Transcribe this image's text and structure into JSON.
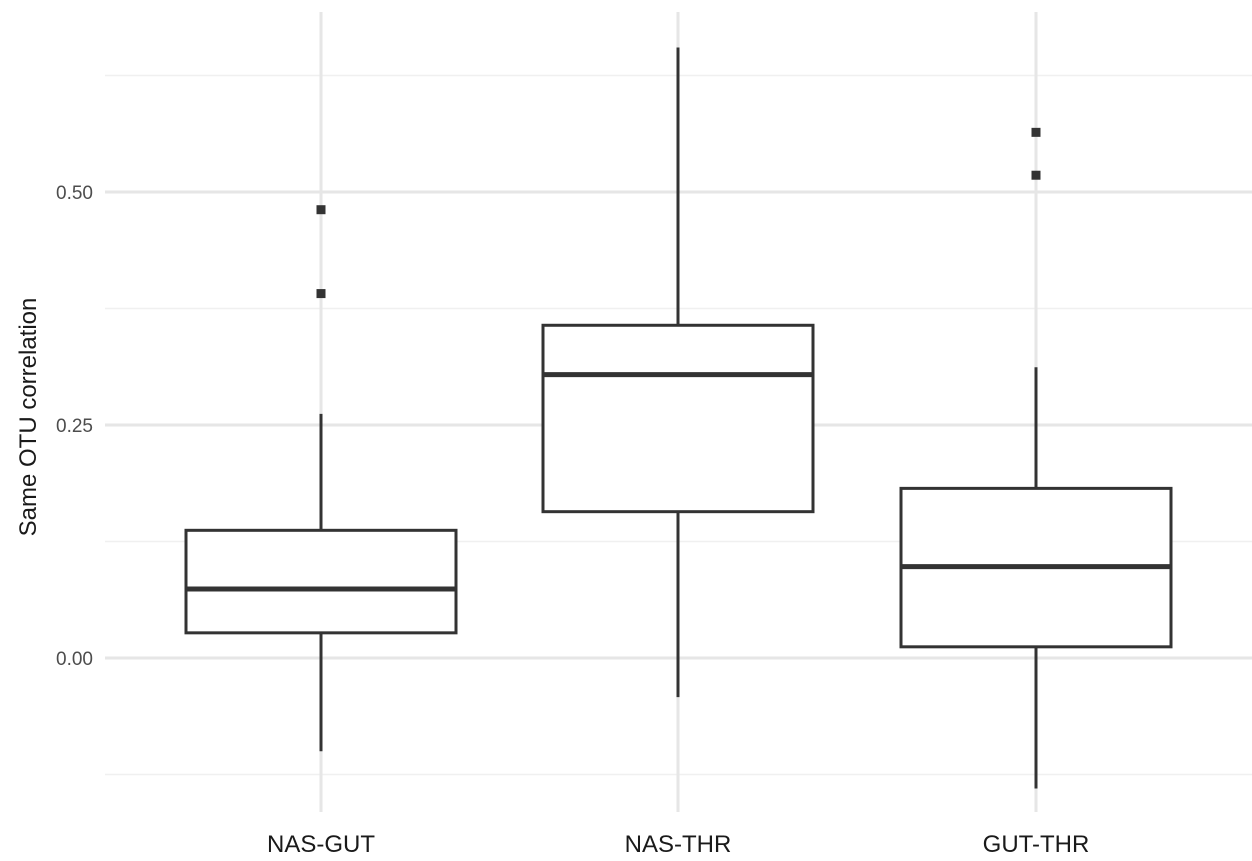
{
  "chart_data": {
    "type": "boxplot",
    "title": "",
    "xlabel": "",
    "ylabel": "Same OTU correlation",
    "ylim": [
      -0.16,
      0.69
    ],
    "y_ticks": [
      0.0,
      0.25,
      0.5
    ],
    "y_tick_labels": [
      "0.00",
      "0.25",
      "0.50"
    ],
    "y_minor_ticks": [
      -0.125,
      0.125,
      0.375,
      0.625
    ],
    "grid": true,
    "categories": [
      "NAS-GUT",
      "NAS-THR",
      "GUT-THR"
    ],
    "boxes": [
      {
        "category": "NAS-GUT",
        "whisker_low": -0.1,
        "q1": 0.027,
        "median": 0.074,
        "q3": 0.137,
        "whisker_high": 0.262,
        "outliers": [
          0.481,
          0.391
        ]
      },
      {
        "category": "NAS-THR",
        "whisker_low": -0.042,
        "q1": 0.157,
        "median": 0.304,
        "q3": 0.357,
        "whisker_high": 0.655,
        "outliers": []
      },
      {
        "category": "GUT-THR",
        "whisker_low": -0.14,
        "q1": 0.012,
        "median": 0.098,
        "q3": 0.182,
        "whisker_high": 0.312,
        "outliers": [
          0.564,
          0.518
        ]
      }
    ]
  }
}
